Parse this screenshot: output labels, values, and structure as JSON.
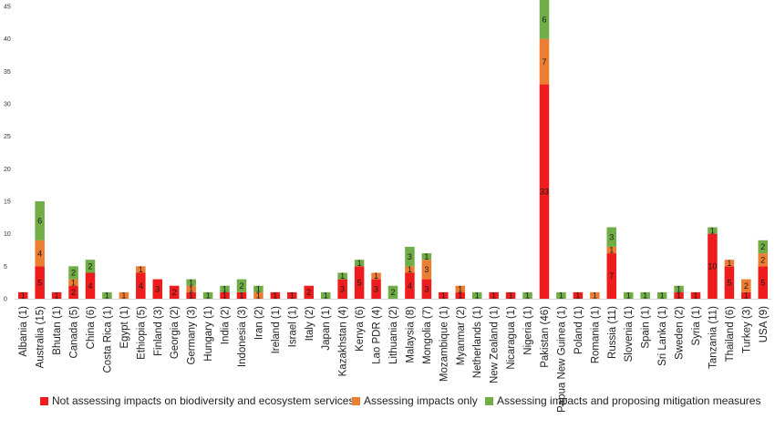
{
  "chart_data": {
    "type": "bar",
    "stacked": true,
    "title": "",
    "xlabel": "",
    "ylabel": "",
    "ylim": [
      0,
      45
    ],
    "yticks": [
      0,
      5,
      10,
      15,
      20,
      25,
      30,
      35,
      40,
      45
    ],
    "grid": false,
    "legend_position": "bottom",
    "categories": [
      "Albania (1)",
      "Australia (15)",
      "Bhutan (1)",
      "Canada (5)",
      "China (6)",
      "Costa Rica (1)",
      "Egypt (1)",
      "Ethiopia (5)",
      "Finland (3)",
      "Georgia (2)",
      "Germany (3)",
      "Hungary (1)",
      "India (2)",
      "Indonesia (3)",
      "Iran (2)",
      "Ireland (1)",
      "Israel (1)",
      "Italy (2)",
      "Japan (1)",
      "Kazakhstan (4)",
      "Kenya (6)",
      "Lao PDR (4)",
      "Lithuania (2)",
      "Malaysia (8)",
      "Mongolia (7)",
      "Mozambique (1)",
      "Myanmar (2)",
      "Netherlands (1)",
      "New Zealand (1)",
      "Nicaragua (1)",
      "Nigeria (1)",
      "Pakistan (46)",
      "Papua New Guinea (1)",
      "Poland (1)",
      "Romania (1)",
      "Russia (11)",
      "Slovenia (1)",
      "Spain (1)",
      "Sri Lanka (1)",
      "Sweden (2)",
      "Syria (1)",
      "Tanzania (11)",
      "Thailand (6)",
      "Turkey (3)",
      "USA (9)"
    ],
    "series": [
      {
        "name": "Not assessing impacts on biodiversity and ecosystem services",
        "color": "#ee1c1c",
        "values": [
          1,
          5,
          1,
          2,
          4,
          0,
          0,
          4,
          3,
          2,
          1,
          0,
          1,
          1,
          0,
          1,
          1,
          2,
          0,
          3,
          5,
          3,
          0,
          4,
          3,
          1,
          1,
          0,
          1,
          1,
          0,
          33,
          0,
          1,
          0,
          7,
          0,
          0,
          0,
          1,
          1,
          10,
          5,
          1,
          5
        ]
      },
      {
        "name": "Assessing impacts only",
        "color": "#ed7d31",
        "values": [
          0,
          4,
          0,
          1,
          0,
          0,
          1,
          1,
          0,
          0,
          1,
          0,
          0,
          0,
          1,
          0,
          0,
          0,
          0,
          0,
          0,
          1,
          0,
          1,
          3,
          0,
          1,
          0,
          0,
          0,
          0,
          7,
          0,
          0,
          1,
          1,
          0,
          0,
          0,
          0,
          0,
          0,
          1,
          2,
          2
        ]
      },
      {
        "name": "Assessing impacts and proposing mitigation measures",
        "color": "#70ad47",
        "values": [
          0,
          6,
          0,
          2,
          2,
          1,
          0,
          0,
          0,
          0,
          1,
          1,
          1,
          2,
          1,
          0,
          0,
          0,
          1,
          1,
          1,
          0,
          2,
          3,
          1,
          0,
          0,
          1,
          0,
          0,
          1,
          6,
          1,
          0,
          0,
          3,
          1,
          1,
          1,
          1,
          0,
          1,
          0,
          0,
          2
        ]
      }
    ]
  }
}
